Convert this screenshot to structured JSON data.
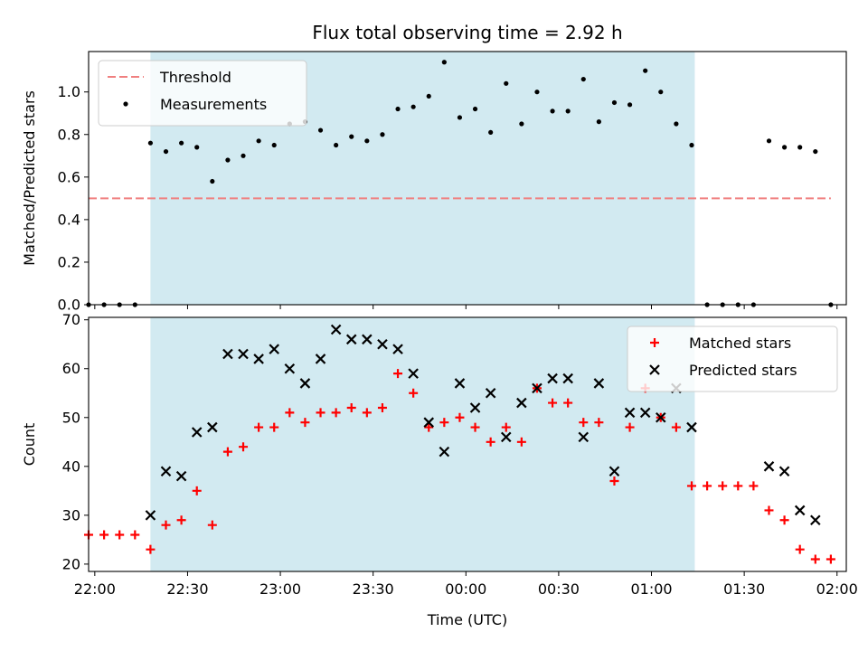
{
  "chart_data": [
    {
      "type": "scatter",
      "title": "Flux total observing time = 2.92 h",
      "xlabel": "",
      "ylabel": "Matched/Predicted stars",
      "xlim": [
        "21:58",
        "02:03"
      ],
      "ylim": [
        0.0,
        1.19
      ],
      "yticks": [
        "0.0",
        "0.2",
        "0.4",
        "0.6",
        "0.8",
        "1.0"
      ],
      "shaded_span": [
        "22:18",
        "01:14"
      ],
      "legend_position": "top-left",
      "threshold": {
        "name": "Threshold",
        "value": 0.5,
        "x_range": [
          "21:58",
          "01:58"
        ],
        "color": "#f08080",
        "style": "dashed"
      },
      "series": [
        {
          "name": "Measurements",
          "color": "#000000",
          "marker": "dot",
          "points": [
            [
              "21:58",
              0.0
            ],
            [
              "22:03",
              0.0
            ],
            [
              "22:08",
              0.0
            ],
            [
              "22:13",
              0.0
            ],
            [
              "22:18",
              0.76
            ],
            [
              "22:23",
              0.72
            ],
            [
              "22:28",
              0.76
            ],
            [
              "22:33",
              0.74
            ],
            [
              "22:38",
              0.58
            ],
            [
              "22:43",
              0.68
            ],
            [
              "22:48",
              0.7
            ],
            [
              "22:53",
              0.77
            ],
            [
              "22:58",
              0.75
            ],
            [
              "23:03",
              0.85
            ],
            [
              "23:08",
              0.86
            ],
            [
              "23:13",
              0.82
            ],
            [
              "23:18",
              0.75
            ],
            [
              "23:23",
              0.79
            ],
            [
              "23:28",
              0.77
            ],
            [
              "23:33",
              0.8
            ],
            [
              "23:38",
              0.92
            ],
            [
              "23:43",
              0.93
            ],
            [
              "23:48",
              0.98
            ],
            [
              "23:53",
              1.14
            ],
            [
              "23:58",
              0.88
            ],
            [
              "00:03",
              0.92
            ],
            [
              "00:08",
              0.81
            ],
            [
              "00:13",
              1.04
            ],
            [
              "00:18",
              0.85
            ],
            [
              "00:23",
              1.0
            ],
            [
              "00:28",
              0.91
            ],
            [
              "00:33",
              0.91
            ],
            [
              "00:38",
              1.06
            ],
            [
              "00:43",
              0.86
            ],
            [
              "00:48",
              0.95
            ],
            [
              "00:53",
              0.94
            ],
            [
              "00:58",
              1.1
            ],
            [
              "01:03",
              1.0
            ],
            [
              "01:08",
              0.85
            ],
            [
              "01:13",
              0.75
            ],
            [
              "01:18",
              0.0
            ],
            [
              "01:23",
              0.0
            ],
            [
              "01:28",
              0.0
            ],
            [
              "01:33",
              0.0
            ],
            [
              "01:38",
              0.77
            ],
            [
              "01:43",
              0.74
            ],
            [
              "01:48",
              0.74
            ],
            [
              "01:53",
              0.72
            ],
            [
              "01:58",
              0.0
            ]
          ]
        }
      ]
    },
    {
      "type": "scatter",
      "title": "",
      "xlabel": "Time (UTC)",
      "ylabel": "Count",
      "xlim": [
        "21:58",
        "02:03"
      ],
      "ylim": [
        18.5,
        70.5
      ],
      "yticks": [
        "20",
        "30",
        "40",
        "50",
        "60",
        "70"
      ],
      "xticks": [
        "22:00",
        "22:30",
        "23:00",
        "23:30",
        "00:00",
        "00:30",
        "01:00",
        "01:30",
        "02:00"
      ],
      "shaded_span": [
        "22:18",
        "01:14"
      ],
      "legend_position": "top-right",
      "series": [
        {
          "name": "Matched stars",
          "color": "#ff0000",
          "marker": "plus",
          "points": [
            [
              "21:58",
              26
            ],
            [
              "22:03",
              26
            ],
            [
              "22:08",
              26
            ],
            [
              "22:13",
              26
            ],
            [
              "22:18",
              23
            ],
            [
              "22:23",
              28
            ],
            [
              "22:28",
              29
            ],
            [
              "22:33",
              35
            ],
            [
              "22:38",
              28
            ],
            [
              "22:43",
              43
            ],
            [
              "22:48",
              44
            ],
            [
              "22:53",
              48
            ],
            [
              "22:58",
              48
            ],
            [
              "23:03",
              51
            ],
            [
              "23:08",
              49
            ],
            [
              "23:13",
              51
            ],
            [
              "23:18",
              51
            ],
            [
              "23:23",
              52
            ],
            [
              "23:28",
              51
            ],
            [
              "23:33",
              52
            ],
            [
              "23:38",
              59
            ],
            [
              "23:43",
              55
            ],
            [
              "23:48",
              48
            ],
            [
              "23:53",
              49
            ],
            [
              "23:58",
              50
            ],
            [
              "00:03",
              48
            ],
            [
              "00:08",
              45
            ],
            [
              "00:13",
              48
            ],
            [
              "00:18",
              45
            ],
            [
              "00:23",
              56
            ],
            [
              "00:28",
              53
            ],
            [
              "00:33",
              53
            ],
            [
              "00:38",
              49
            ],
            [
              "00:43",
              49
            ],
            [
              "00:48",
              37
            ],
            [
              "00:53",
              48
            ],
            [
              "00:58",
              56
            ],
            [
              "01:03",
              50
            ],
            [
              "01:08",
              48
            ],
            [
              "01:13",
              36
            ],
            [
              "01:18",
              36
            ],
            [
              "01:23",
              36
            ],
            [
              "01:28",
              36
            ],
            [
              "01:33",
              36
            ],
            [
              "01:38",
              31
            ],
            [
              "01:43",
              29
            ],
            [
              "01:48",
              23
            ],
            [
              "01:53",
              21
            ],
            [
              "01:58",
              21
            ]
          ]
        },
        {
          "name": "Predicted stars",
          "color": "#000000",
          "marker": "x",
          "points": [
            [
              "22:18",
              30
            ],
            [
              "22:23",
              39
            ],
            [
              "22:28",
              38
            ],
            [
              "22:33",
              47
            ],
            [
              "22:38",
              48
            ],
            [
              "22:43",
              63
            ],
            [
              "22:48",
              63
            ],
            [
              "22:53",
              62
            ],
            [
              "22:58",
              64
            ],
            [
              "23:03",
              60
            ],
            [
              "23:08",
              57
            ],
            [
              "23:13",
              62
            ],
            [
              "23:18",
              68
            ],
            [
              "23:23",
              66
            ],
            [
              "23:28",
              66
            ],
            [
              "23:33",
              65
            ],
            [
              "23:38",
              64
            ],
            [
              "23:43",
              59
            ],
            [
              "23:48",
              49
            ],
            [
              "23:53",
              43
            ],
            [
              "23:58",
              57
            ],
            [
              "00:03",
              52
            ],
            [
              "00:08",
              55
            ],
            [
              "00:13",
              46
            ],
            [
              "00:18",
              53
            ],
            [
              "00:23",
              56
            ],
            [
              "00:28",
              58
            ],
            [
              "00:33",
              58
            ],
            [
              "00:38",
              46
            ],
            [
              "00:43",
              57
            ],
            [
              "00:48",
              39
            ],
            [
              "00:53",
              51
            ],
            [
              "00:58",
              51
            ],
            [
              "01:03",
              50
            ],
            [
              "01:08",
              56
            ],
            [
              "01:13",
              48
            ],
            [
              "01:38",
              40
            ],
            [
              "01:43",
              39
            ],
            [
              "01:48",
              31
            ],
            [
              "01:53",
              29
            ]
          ]
        }
      ]
    }
  ],
  "colors": {
    "shade": "#add8e6",
    "threshold": "#f08080",
    "matched": "#ff0000",
    "predicted": "#000000"
  }
}
